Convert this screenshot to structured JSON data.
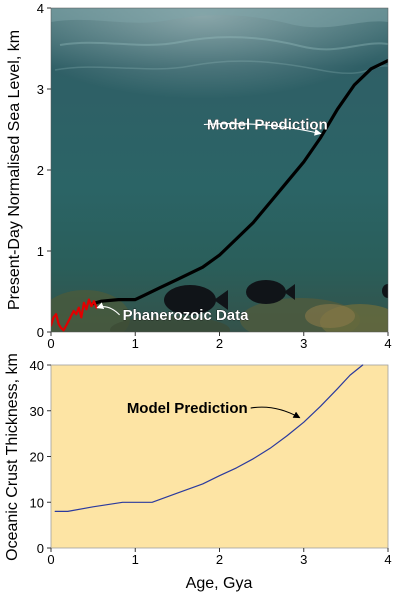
{
  "chart_data": [
    {
      "type": "line",
      "ylabel": "Present-Day Normalised Sea Level, km",
      "xlim": [
        0,
        4
      ],
      "ylim": [
        0,
        4
      ],
      "xticks": [
        0,
        1,
        2,
        3,
        4
      ],
      "yticks": [
        0,
        1,
        2,
        3,
        4
      ],
      "grid": false,
      "background": "underwater photograph",
      "series": [
        {
          "name": "Model Prediction",
          "color": "#000000",
          "x": [
            0.5,
            0.6,
            0.8,
            1.0,
            1.1,
            1.3,
            1.5,
            1.8,
            2.0,
            2.2,
            2.4,
            2.6,
            2.8,
            3.0,
            3.2,
            3.4,
            3.6,
            3.8,
            4.0
          ],
          "y": [
            0.35,
            0.38,
            0.4,
            0.4,
            0.45,
            0.55,
            0.65,
            0.8,
            0.95,
            1.15,
            1.35,
            1.6,
            1.85,
            2.1,
            2.4,
            2.75,
            3.05,
            3.25,
            3.35
          ]
        },
        {
          "name": "Phanerozoic Data",
          "color": "#e00000",
          "x": [
            0.0,
            0.03,
            0.06,
            0.09,
            0.12,
            0.15,
            0.18,
            0.21,
            0.24,
            0.27,
            0.3,
            0.33,
            0.36,
            0.39,
            0.42,
            0.45,
            0.48,
            0.51,
            0.54
          ],
          "y": [
            0.08,
            0.18,
            0.22,
            0.1,
            0.05,
            0.02,
            0.08,
            0.14,
            0.2,
            0.26,
            0.22,
            0.3,
            0.18,
            0.36,
            0.28,
            0.4,
            0.32,
            0.38,
            0.3
          ]
        }
      ],
      "annotations": [
        {
          "text": "Model Prediction",
          "x": 1.85,
          "y": 2.5,
          "arrow_to": [
            3.2,
            2.45
          ]
        },
        {
          "text": "Phanerozoic Data",
          "x": 0.85,
          "y": 0.15,
          "arrow_to": [
            0.55,
            0.3
          ]
        }
      ]
    },
    {
      "type": "line",
      "xlabel": "Age, Gya",
      "ylabel": "Oceanic Crust Thickness, km",
      "xlim": [
        0,
        4
      ],
      "ylim": [
        0,
        40
      ],
      "xticks": [
        0,
        1,
        2,
        3,
        4
      ],
      "yticks": [
        0,
        10,
        20,
        30,
        40
      ],
      "grid": false,
      "background_color": "#fde4a4",
      "series": [
        {
          "name": "Model Prediction",
          "color": "#2b3a9e",
          "x": [
            0.05,
            0.2,
            0.5,
            0.85,
            1.2,
            1.5,
            1.8,
            2.0,
            2.2,
            2.4,
            2.6,
            2.8,
            3.0,
            3.2,
            3.4,
            3.55,
            3.7
          ],
          "y": [
            8.0,
            8.0,
            9.0,
            10.0,
            10.0,
            12.0,
            14.0,
            15.8,
            17.5,
            19.5,
            21.8,
            24.5,
            27.5,
            31.0,
            34.8,
            37.8,
            40.0
          ]
        }
      ],
      "annotations": [
        {
          "text": "Model Prediction",
          "x": 0.9,
          "y": 29.5,
          "arrow_to": [
            2.95,
            28.5
          ]
        }
      ]
    }
  ]
}
